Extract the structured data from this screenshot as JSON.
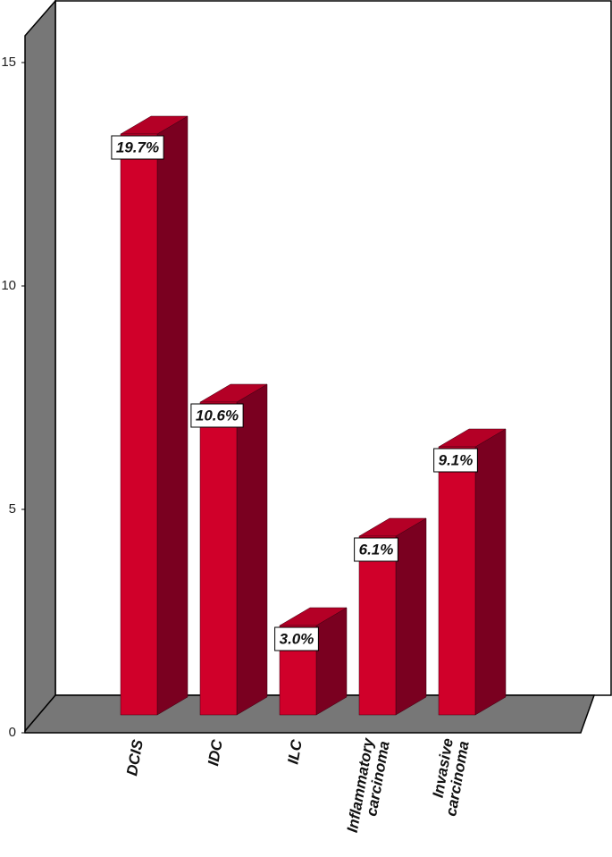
{
  "chart_data": {
    "type": "bar3d",
    "categories": [
      "DCIS",
      "IDC",
      "ILC",
      "Inflammatory carcinoma",
      "Invasive carcinoma"
    ],
    "values": [
      13,
      7,
      2,
      4,
      6
    ],
    "data_labels": [
      "19.7%",
      "10.6%",
      "3.0%",
      "6.1%",
      "9.1%"
    ],
    "color": "#d0002a",
    "ylim": [
      0,
      15
    ],
    "yticks": [
      0,
      5,
      10,
      15
    ],
    "grid": false
  }
}
